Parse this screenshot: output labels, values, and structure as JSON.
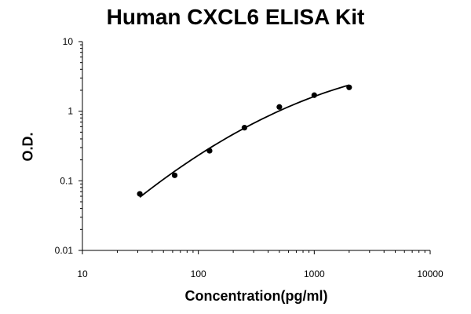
{
  "chart_data": {
    "type": "scatter",
    "title": "Human CXCL6 ELISA Kit",
    "xlabel": "Concentration(pg/ml)",
    "ylabel": "O.D.",
    "xscale": "log",
    "yscale": "log",
    "xlim": [
      10,
      10000
    ],
    "ylim": [
      0.01,
      10
    ],
    "xticks": [
      10,
      100,
      1000,
      10000
    ],
    "xtick_labels": [
      "10",
      "100",
      "1000",
      "10000"
    ],
    "yticks": [
      0.01,
      0.1,
      1,
      10
    ],
    "ytick_labels": [
      "0.01",
      "0.1",
      "1",
      "10"
    ],
    "grid": false,
    "legend": "none",
    "series": [
      {
        "x": [
          31.25,
          62.5,
          125,
          250,
          500,
          1000,
          2000
        ],
        "y": [
          0.065,
          0.12,
          0.27,
          0.58,
          1.15,
          1.7,
          2.2
        ],
        "marker": "point",
        "fit_line": true,
        "color": "#000000"
      }
    ]
  }
}
